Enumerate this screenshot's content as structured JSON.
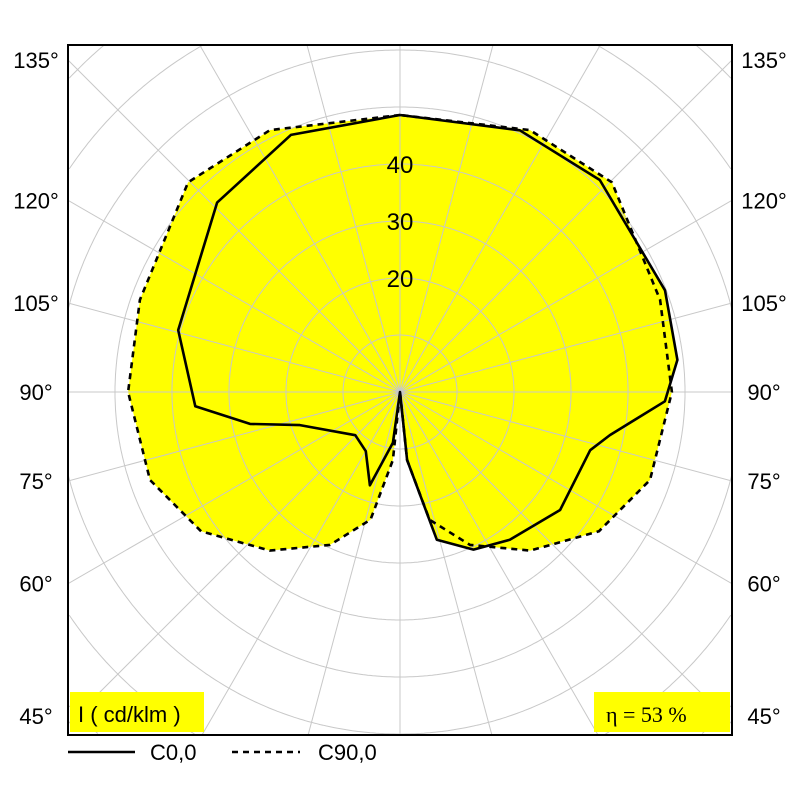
{
  "chart_data": {
    "type": "polar",
    "unit_label": "I ( cd/klm )",
    "efficiency_label": "η = 53 %",
    "radial_ticks": [
      20,
      30,
      40
    ],
    "radial_grid_step": 10,
    "angle_labels": [
      "135°",
      "120°",
      "105°",
      "90°",
      "75°",
      "60°",
      "45°"
    ],
    "angle_label_values": [
      135,
      120,
      105,
      90,
      75,
      60,
      45
    ],
    "fill_color": "#ffff00",
    "grid": true,
    "legend_position": "bottom-left",
    "series": [
      {
        "name": "C0,0",
        "style": "solid",
        "points": [
          [
            -180,
            48.6
          ],
          [
            -157,
            49
          ],
          [
            -136,
            46.2
          ],
          [
            -105.6,
            40.4
          ],
          [
            -86,
            36
          ],
          [
            -78,
            26.9
          ],
          [
            -71.7,
            18.5
          ],
          [
            -46,
            10.9
          ],
          [
            -30,
            12
          ],
          [
            -17.9,
            17.2
          ],
          [
            -8,
            9
          ],
          [
            0,
            0
          ],
          [
            6,
            12
          ],
          [
            14,
            26.7
          ],
          [
            25,
            30.5
          ],
          [
            36.6,
            32.3
          ],
          [
            53.6,
            34.9
          ],
          [
            73,
            34.9
          ],
          [
            78.4,
            37.6
          ],
          [
            88,
            46.5
          ],
          [
            96.6,
            49
          ],
          [
            111,
            49.8
          ],
          [
            136.7,
            51.1
          ],
          [
            155.4,
            50.5
          ],
          [
            180,
            48.6
          ]
        ]
      },
      {
        "name": "C90,0",
        "style": "dashed",
        "points": [
          [
            0,
            0
          ],
          [
            6,
            12
          ],
          [
            13,
            23
          ],
          [
            24.6,
            29.5
          ],
          [
            39.4,
            36
          ],
          [
            55,
            42.6
          ],
          [
            70.6,
            46.5
          ],
          [
            90,
            47.7
          ],
          [
            109.5,
            48.4
          ],
          [
            134.7,
            52.3
          ],
          [
            153.6,
            51.3
          ],
          [
            180,
            48.6
          ]
        ]
      }
    ]
  }
}
